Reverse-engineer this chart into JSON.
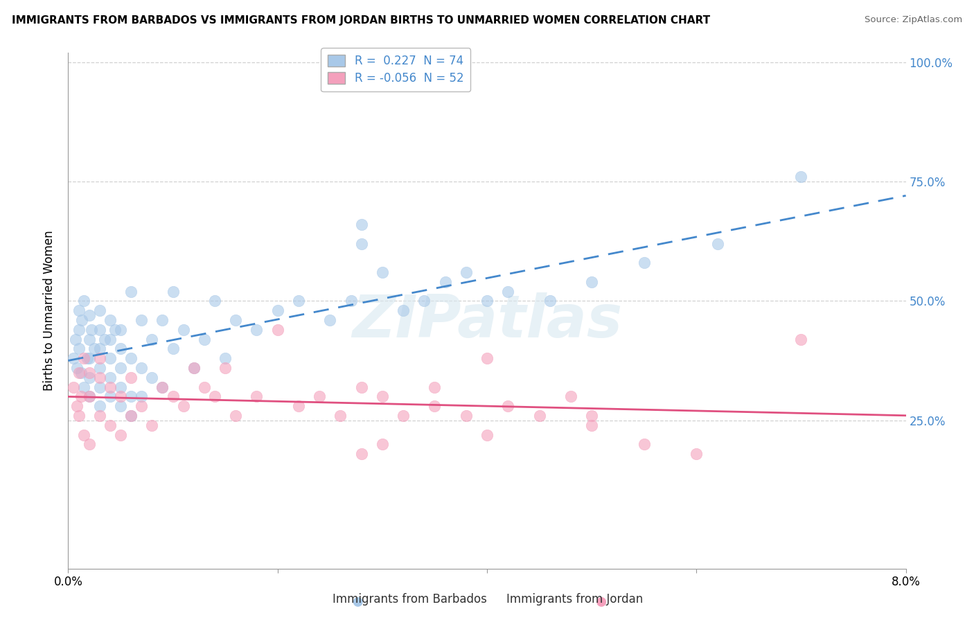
{
  "title": "IMMIGRANTS FROM BARBADOS VS IMMIGRANTS FROM JORDAN BIRTHS TO UNMARRIED WOMEN CORRELATION CHART",
  "source": "Source: ZipAtlas.com",
  "ylabel": "Births to Unmarried Women",
  "xmin": 0.0,
  "xmax": 0.08,
  "ymin": -0.06,
  "ymax": 1.02,
  "yticks": [
    0.25,
    0.5,
    0.75,
    1.0
  ],
  "ytick_labels": [
    "25.0%",
    "50.0%",
    "75.0%",
    "100.0%"
  ],
  "r_barbados": 0.227,
  "n_barbados": 74,
  "r_jordan": -0.056,
  "n_jordan": 52,
  "color_barbados": "#a8c8e8",
  "color_jordan": "#f4a0bc",
  "line_color_barbados": "#4488cc",
  "line_color_jordan": "#e05080",
  "legend_label_barbados": "Immigrants from Barbados",
  "legend_label_jordan": "Immigrants from Jordan",
  "background_color": "#ffffff",
  "grid_color": "#cccccc",
  "watermark_text": "ZIPatlas",
  "right_tick_color": "#4488cc",
  "barbados_x": [
    0.0005,
    0.0007,
    0.0008,
    0.001,
    0.001,
    0.001,
    0.0012,
    0.0013,
    0.0015,
    0.0015,
    0.0018,
    0.002,
    0.002,
    0.002,
    0.002,
    0.002,
    0.0022,
    0.0025,
    0.003,
    0.003,
    0.003,
    0.003,
    0.003,
    0.003,
    0.0035,
    0.004,
    0.004,
    0.004,
    0.004,
    0.004,
    0.0045,
    0.005,
    0.005,
    0.005,
    0.005,
    0.005,
    0.006,
    0.006,
    0.006,
    0.006,
    0.007,
    0.007,
    0.007,
    0.008,
    0.008,
    0.009,
    0.009,
    0.01,
    0.01,
    0.011,
    0.012,
    0.013,
    0.014,
    0.015,
    0.016,
    0.018,
    0.02,
    0.022,
    0.025,
    0.027,
    0.028,
    0.028,
    0.03,
    0.032,
    0.034,
    0.036,
    0.038,
    0.04,
    0.042,
    0.046,
    0.05,
    0.055,
    0.062,
    0.07
  ],
  "barbados_y": [
    0.38,
    0.42,
    0.36,
    0.4,
    0.44,
    0.48,
    0.35,
    0.46,
    0.32,
    0.5,
    0.38,
    0.3,
    0.34,
    0.38,
    0.42,
    0.47,
    0.44,
    0.4,
    0.28,
    0.32,
    0.36,
    0.4,
    0.44,
    0.48,
    0.42,
    0.3,
    0.34,
    0.38,
    0.42,
    0.46,
    0.44,
    0.28,
    0.32,
    0.36,
    0.4,
    0.44,
    0.26,
    0.3,
    0.38,
    0.52,
    0.3,
    0.36,
    0.46,
    0.34,
    0.42,
    0.32,
    0.46,
    0.4,
    0.52,
    0.44,
    0.36,
    0.42,
    0.5,
    0.38,
    0.46,
    0.44,
    0.48,
    0.5,
    0.46,
    0.5,
    0.62,
    0.66,
    0.56,
    0.48,
    0.5,
    0.54,
    0.56,
    0.5,
    0.52,
    0.5,
    0.54,
    0.58,
    0.62,
    0.76
  ],
  "jordan_x": [
    0.0005,
    0.0008,
    0.001,
    0.001,
    0.0012,
    0.0015,
    0.0015,
    0.002,
    0.002,
    0.002,
    0.003,
    0.003,
    0.003,
    0.004,
    0.004,
    0.005,
    0.005,
    0.006,
    0.006,
    0.007,
    0.008,
    0.009,
    0.01,
    0.011,
    0.012,
    0.013,
    0.014,
    0.015,
    0.016,
    0.018,
    0.02,
    0.022,
    0.024,
    0.026,
    0.028,
    0.03,
    0.032,
    0.035,
    0.038,
    0.04,
    0.042,
    0.045,
    0.048,
    0.05,
    0.028,
    0.03,
    0.035,
    0.04,
    0.05,
    0.055,
    0.06,
    0.07
  ],
  "jordan_y": [
    0.32,
    0.28,
    0.26,
    0.35,
    0.3,
    0.22,
    0.38,
    0.2,
    0.3,
    0.35,
    0.26,
    0.34,
    0.38,
    0.24,
    0.32,
    0.22,
    0.3,
    0.26,
    0.34,
    0.28,
    0.24,
    0.32,
    0.3,
    0.28,
    0.36,
    0.32,
    0.3,
    0.36,
    0.26,
    0.3,
    0.44,
    0.28,
    0.3,
    0.26,
    0.32,
    0.3,
    0.26,
    0.28,
    0.26,
    0.38,
    0.28,
    0.26,
    0.3,
    0.24,
    0.18,
    0.2,
    0.32,
    0.22,
    0.26,
    0.2,
    0.18,
    0.42
  ]
}
